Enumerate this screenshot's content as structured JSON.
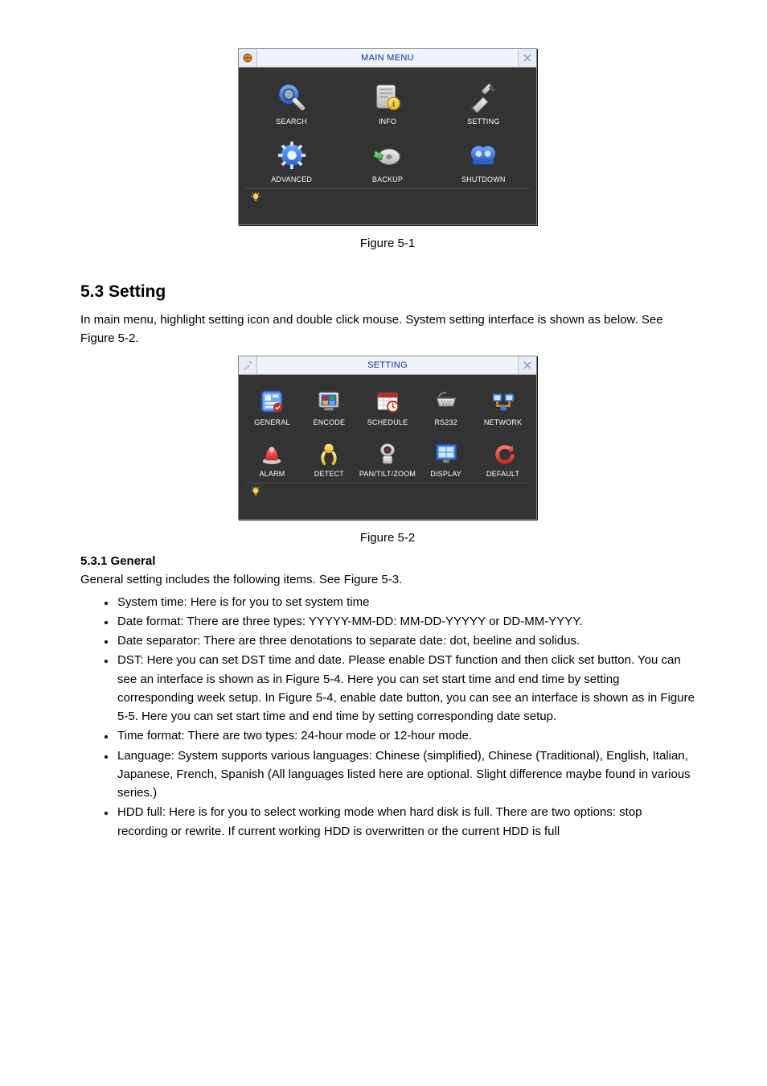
{
  "colors": {
    "titlebar_bg": "#d6dff0",
    "title_text": "#1030a0",
    "window_body": "#333333",
    "icon_label": "#ffffff",
    "page_bg": "#ffffff",
    "body_text": "#000000"
  },
  "fig1": {
    "title": "MAIN MENU",
    "caption": "Figure 5-1",
    "grid_cols": 3,
    "items": [
      {
        "name": "search",
        "label": "SEARCH"
      },
      {
        "name": "info",
        "label": "INFO"
      },
      {
        "name": "setting",
        "label": "SETTING"
      },
      {
        "name": "advanced",
        "label": "ADVANCED"
      },
      {
        "name": "backup",
        "label": "BACKUP"
      },
      {
        "name": "shutdown",
        "label": "SHUTDOWN"
      }
    ]
  },
  "section": {
    "number_title": "5.3  Setting",
    "intro": "In main menu, highlight setting icon and double click mouse. System setting interface is shown as below. See Figure 5-2."
  },
  "fig2": {
    "title": "SETTING",
    "caption": "Figure 5-2",
    "grid_cols": 5,
    "items": [
      {
        "name": "general",
        "label": "GENERAL"
      },
      {
        "name": "encode",
        "label": "ENCODE"
      },
      {
        "name": "schedule",
        "label": "SCHEDULE"
      },
      {
        "name": "rs232",
        "label": "RS232"
      },
      {
        "name": "network",
        "label": "NETWORK"
      },
      {
        "name": "alarm",
        "label": "ALARM"
      },
      {
        "name": "detect",
        "label": "DETECT"
      },
      {
        "name": "ptz",
        "label": "PAN/TILT/ZOOM"
      },
      {
        "name": "display",
        "label": "DISPLAY"
      },
      {
        "name": "default",
        "label": "DEFAULT"
      }
    ]
  },
  "sub": {
    "heading": "5.3.1  General",
    "lead": "General setting includes the following items. See Figure 5-3.",
    "bullets": [
      "System time: Here is for you to set system time",
      "Date format: There are three types: YYYYY-MM-DD: MM-DD-YYYYY or DD-MM-YYYY.",
      "Date separator: There are three denotations to separate date: dot, beeline and solidus.",
      "DST: Here you can set DST time and date. Please enable DST function and then click set button. You can see an interface is shown as in Figure 5-4. Here you can set start time and end time by setting corresponding week setup. In Figure 5-4, enable date button, you can see an interface is shown as in Figure 5-5. Here you can set start time and end time by setting corresponding date setup.",
      "Time format: There are two types: 24-hour mode or 12-hour mode.",
      "Language: System supports various languages: Chinese (simplified), Chinese (Traditional), English, Italian, Japanese, French, Spanish (All languages listed here are optional. Slight difference maybe found in various series.)",
      "HDD full: Here is for you to select working mode when hard disk is full. There are two options: stop recording or rewrite. If current working HDD is overwritten or the current HDD is full"
    ]
  }
}
